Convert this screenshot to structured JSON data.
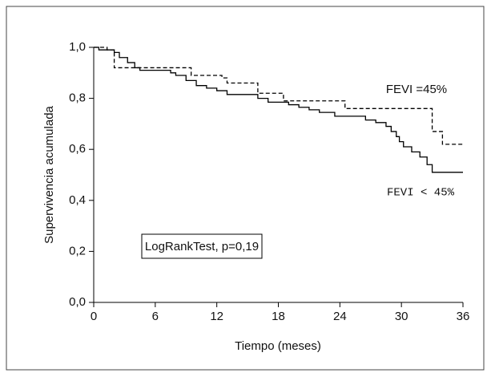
{
  "chart_data": {
    "type": "step",
    "xlabel": "Tiempo (meses)",
    "ylabel": "Supervivencia acumulada",
    "annotation": "LogRankTest, p=0,19",
    "xlim": [
      0,
      36
    ],
    "xticks": [
      0,
      6,
      12,
      18,
      24,
      30,
      36
    ],
    "ylim": [
      0,
      1
    ],
    "yticks": [
      {
        "value": 0,
        "label": "0,0"
      },
      {
        "value": 0.2,
        "label": "0,2"
      },
      {
        "value": 0.4,
        "label": "0,4"
      },
      {
        "value": 0.6,
        "label": "0,6"
      },
      {
        "value": 0.8,
        "label": "0,8"
      },
      {
        "value": 1,
        "label": "1,0"
      }
    ],
    "series": [
      {
        "name": "FEVI =45%",
        "color": "#000000",
        "dash": true,
        "x": [
          0,
          1.3,
          2,
          9.5,
          12.5,
          13,
          16,
          18.5,
          24.5,
          33,
          34,
          36
        ],
        "values": [
          1.0,
          0.99,
          0.92,
          0.89,
          0.88,
          0.86,
          0.82,
          0.79,
          0.76,
          0.67,
          0.62,
          0.62
        ]
      },
      {
        "name": "FEVI < 45%",
        "color": "#000000",
        "dash": false,
        "x": [
          0,
          0.5,
          2,
          2.5,
          3.3,
          4,
          4.5,
          7.5,
          8,
          9,
          10,
          11,
          12,
          13,
          16,
          17,
          19,
          20,
          21,
          22,
          23.5,
          26.5,
          27.5,
          28.5,
          29,
          29.5,
          29.8,
          30.2,
          31,
          31.8,
          32.5,
          33,
          36
        ],
        "values": [
          1.0,
          0.99,
          0.98,
          0.96,
          0.94,
          0.92,
          0.91,
          0.9,
          0.89,
          0.87,
          0.85,
          0.84,
          0.83,
          0.815,
          0.8,
          0.785,
          0.775,
          0.765,
          0.755,
          0.745,
          0.73,
          0.715,
          0.705,
          0.69,
          0.67,
          0.65,
          0.63,
          0.61,
          0.59,
          0.57,
          0.54,
          0.51,
          0.51
        ]
      }
    ]
  }
}
